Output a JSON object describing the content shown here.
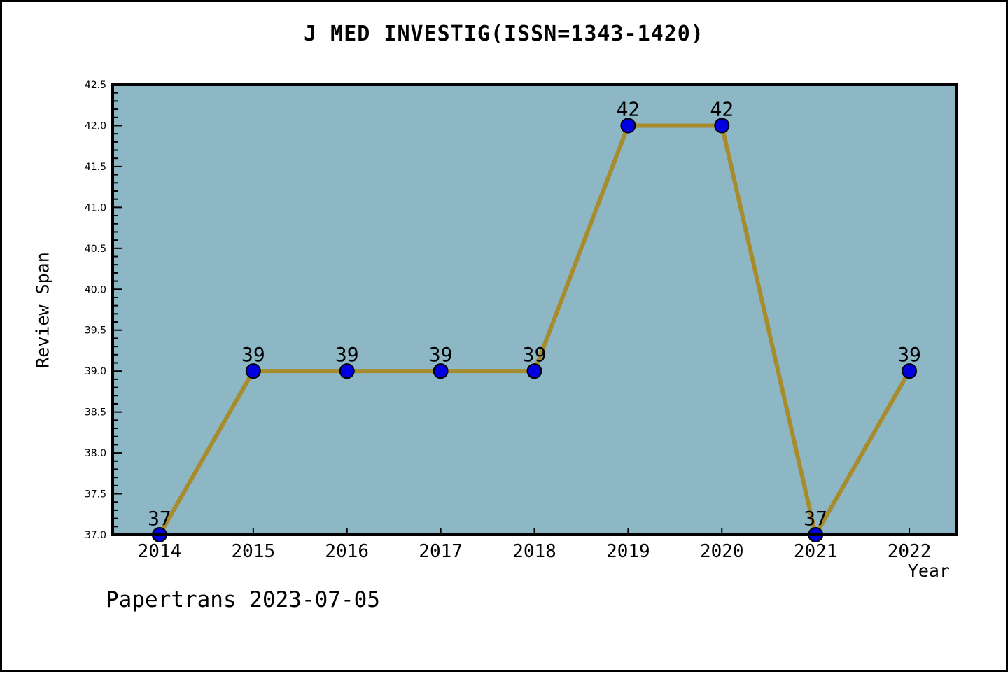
{
  "page": {
    "watermark": "Papertrans 2023-07-05"
  },
  "chart_data": {
    "type": "line",
    "title": "J MED INVESTIG(ISSN=1343-1420)",
    "xlabel": "Year",
    "ylabel": "Review Span",
    "x": [
      2014,
      2015,
      2016,
      2017,
      2018,
      2019,
      2020,
      2021,
      2022
    ],
    "values": [
      37,
      39,
      39,
      39,
      39,
      42,
      42,
      37,
      39
    ],
    "point_labels": [
      "37",
      "39",
      "39",
      "39",
      "39",
      "42",
      "42",
      "37",
      "39"
    ],
    "ylim": [
      37.0,
      42.5
    ],
    "ytick_step": 0.5,
    "ytick_minor_step": 0.1,
    "ytick_labels": [
      "37.0",
      "37.5",
      "38.0",
      "38.5",
      "39.0",
      "39.5",
      "40.0",
      "40.5",
      "41.0",
      "41.5",
      "42.0",
      "42.5"
    ],
    "xtick_labels": [
      "2014",
      "2015",
      "2016",
      "2017",
      "2018",
      "2019",
      "2020",
      "2021",
      "2022"
    ],
    "xpad": 0.5,
    "grid": false,
    "legend": null,
    "colors": {
      "line": "#a78c2e",
      "marker": "#0000e0",
      "marker_edge": "#000000",
      "plot_bg": "#8db7c5",
      "frame": "#000000",
      "text": "#000000",
      "outer_bg": "#ffffff"
    }
  }
}
